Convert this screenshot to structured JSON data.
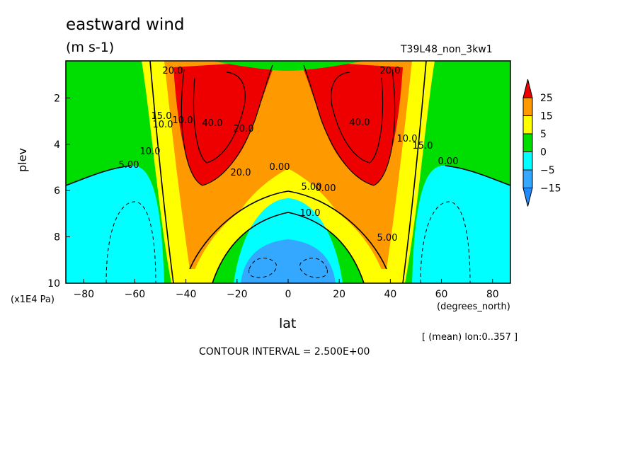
{
  "title": "eastward wind",
  "units": "(m s-1)",
  "run_name": "T39L48_non_3kw1",
  "ylabel": "plev",
  "y_unit_label": "(x1E4 Pa)",
  "xlabel": "lat",
  "x_unit_label": "(degrees_north)",
  "footnote": "[ (mean) lon:0..357 ]",
  "contour_interval": "CONTOUR INTERVAL = 2.500E+00",
  "colors": {
    "lt_m15": "#1f8cff",
    "m15_m5": "#34a8ff",
    "m5_0": "#00ffff",
    "0_5": "#00dd00",
    "5_15": "#ffff00",
    "15_25": "#ff9900",
    "gt_25": "#ee0000"
  },
  "chart_data": {
    "type": "heatmap",
    "subtype": "filled contour",
    "x_ticks": [
      "-80",
      "-60",
      "-40",
      "-20",
      "0",
      "20",
      "40",
      "60",
      "80"
    ],
    "y_ticks": [
      "2",
      "4",
      "6",
      "8",
      "10"
    ],
    "xlim": [
      -87,
      87
    ],
    "ylim": [
      10,
      0.4
    ],
    "y_reversed": true,
    "colorbar": {
      "labels": [
        "25",
        "15",
        "5",
        "0",
        "-5",
        "-15"
      ],
      "levels": [
        -15,
        -5,
        0,
        5,
        15,
        25
      ]
    },
    "contour_labels": [
      "20.0",
      "10.0",
      "20.0",
      "15.0",
      "10.0",
      "40.0",
      "20.0",
      "10.0",
      "5.00",
      "0.00",
      "5.00",
      "10.0",
      "15.0",
      "0.00",
      "40.0",
      "20.0",
      "5.00",
      "0.00",
      "10.0"
    ],
    "jet_max": {
      "lat": [
        -30,
        30
      ],
      "plev": 2,
      "value": 40
    }
  }
}
